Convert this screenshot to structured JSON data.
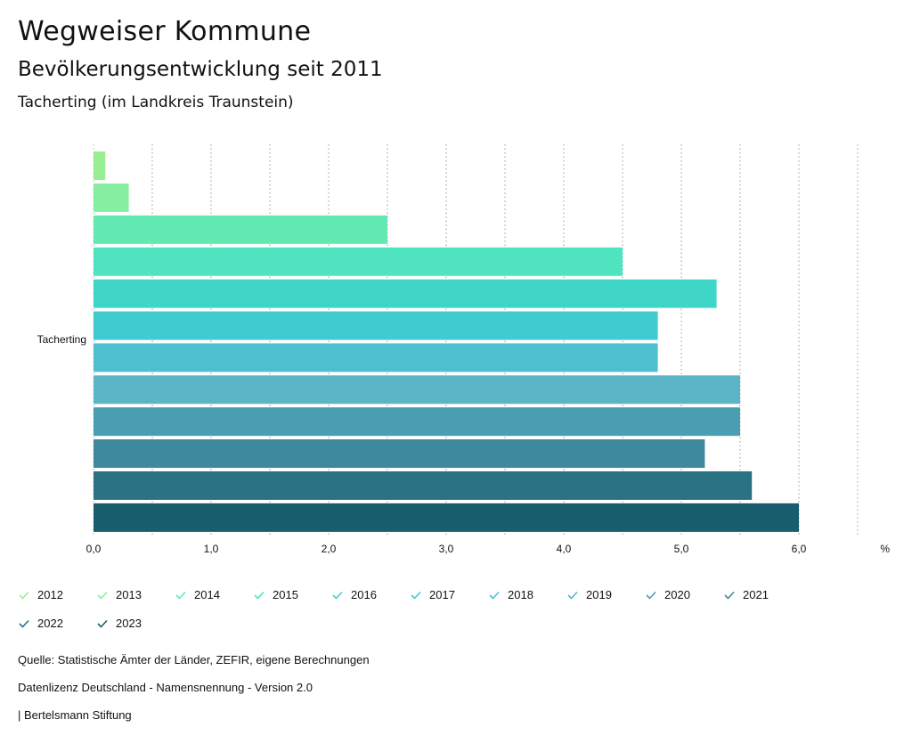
{
  "header": {
    "title": "Wegweiser Kommune",
    "subtitle": "Bevölkerungsentwicklung seit 2011",
    "region": "Tacherting (im Landkreis Traunstein)"
  },
  "chart_data": {
    "type": "bar",
    "orientation": "horizontal",
    "categories": [
      "Tacherting"
    ],
    "xlabel": "%",
    "xlim": [
      0,
      6.5
    ],
    "xticks": [
      "0,0",
      "1,0",
      "2,0",
      "3,0",
      "4,0",
      "5,0",
      "6,0"
    ],
    "grid": true,
    "legend_position": "bottom",
    "series": [
      {
        "name": "2012",
        "color": "#98ee90",
        "values": [
          0.1
        ]
      },
      {
        "name": "2013",
        "color": "#85eea0",
        "values": [
          0.3
        ]
      },
      {
        "name": "2014",
        "color": "#62e9b1",
        "values": [
          2.5
        ]
      },
      {
        "name": "2015",
        "color": "#4fe3c0",
        "values": [
          4.5
        ]
      },
      {
        "name": "2016",
        "color": "#3fd6c8",
        "values": [
          5.3
        ]
      },
      {
        "name": "2017",
        "color": "#40cbcf",
        "values": [
          4.8
        ]
      },
      {
        "name": "2018",
        "color": "#4dbfcf",
        "values": [
          4.8
        ]
      },
      {
        "name": "2019",
        "color": "#5bb5c7",
        "values": [
          5.5
        ]
      },
      {
        "name": "2020",
        "color": "#4b9eb2",
        "values": [
          5.5
        ]
      },
      {
        "name": "2021",
        "color": "#3e899c",
        "values": [
          5.2
        ]
      },
      {
        "name": "2022",
        "color": "#2a7385",
        "values": [
          5.6
        ]
      },
      {
        "name": "2023",
        "color": "#185e6e",
        "values": [
          6.0
        ]
      }
    ]
  },
  "footer": {
    "source": "Quelle: Statistische Ämter der Länder, ZEFIR, eigene Berechnungen",
    "license": "Datenlizenz Deutschland - Namensnennung - Version 2.0",
    "publisher": "| Bertelsmann Stiftung"
  }
}
